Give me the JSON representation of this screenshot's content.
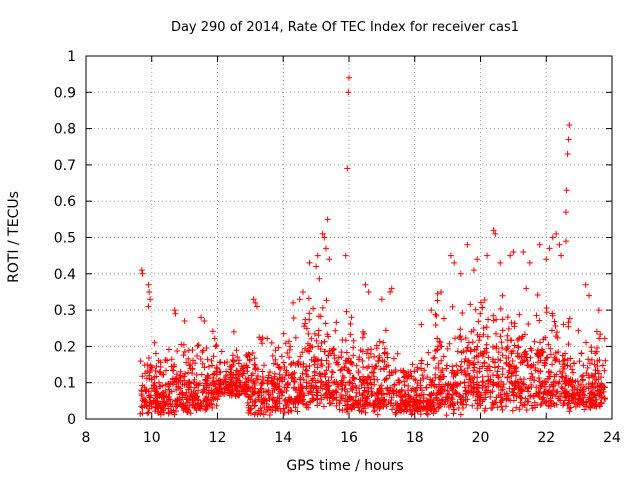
{
  "chart_data": {
    "type": "scatter",
    "title": "Day 290 of 2014, Rate Of TEC Index for receiver cas1",
    "xlabel": "GPS time / hours",
    "ylabel": "ROTI / TECUs",
    "xlim": [
      8,
      24
    ],
    "ylim": [
      0,
      1
    ],
    "xticks": [
      8,
      10,
      12,
      14,
      16,
      18,
      20,
      22,
      24
    ],
    "yticks": [
      0,
      0.1,
      0.2,
      0.3,
      0.4,
      0.5,
      0.6,
      0.7,
      0.8,
      0.9,
      1
    ],
    "ytick_labels": [
      "0",
      "0.1",
      "0.2",
      "0.3",
      "0.4",
      "0.5",
      "0.6",
      "0.7",
      "0.8",
      "0.9",
      "1"
    ],
    "grid": true,
    "marker": "+",
    "color": "#ff0000",
    "series": [
      {
        "name": "cas1",
        "points": [
          [
            9.7,
            0.41
          ],
          [
            9.72,
            0.4
          ],
          [
            9.9,
            0.37
          ],
          [
            9.92,
            0.35
          ],
          [
            9.95,
            0.33
          ],
          [
            9.9,
            0.31
          ],
          [
            10.7,
            0.3
          ],
          [
            10.72,
            0.29
          ],
          [
            11.0,
            0.27
          ],
          [
            11.5,
            0.28
          ],
          [
            11.6,
            0.27
          ],
          [
            12.5,
            0.24
          ],
          [
            13.1,
            0.33
          ],
          [
            13.15,
            0.32
          ],
          [
            13.2,
            0.31
          ],
          [
            14.3,
            0.32
          ],
          [
            14.5,
            0.33
          ],
          [
            14.6,
            0.35
          ],
          [
            14.8,
            0.43
          ],
          [
            15.0,
            0.42
          ],
          [
            15.05,
            0.45
          ],
          [
            15.2,
            0.51
          ],
          [
            15.25,
            0.5
          ],
          [
            15.35,
            0.55
          ],
          [
            15.3,
            0.47
          ],
          [
            15.4,
            0.44
          ],
          [
            15.9,
            0.45
          ],
          [
            15.95,
            0.69
          ],
          [
            15.98,
            0.9
          ],
          [
            16.0,
            0.94
          ],
          [
            16.5,
            0.37
          ],
          [
            16.6,
            0.35
          ],
          [
            17.0,
            0.33
          ],
          [
            17.25,
            0.35
          ],
          [
            17.3,
            0.36
          ],
          [
            18.2,
            0.26
          ],
          [
            18.5,
            0.3
          ],
          [
            18.8,
            0.35
          ],
          [
            19.1,
            0.45
          ],
          [
            19.2,
            0.43
          ],
          [
            19.4,
            0.4
          ],
          [
            19.6,
            0.48
          ],
          [
            19.8,
            0.41
          ],
          [
            19.9,
            0.44
          ],
          [
            20.2,
            0.45
          ],
          [
            20.4,
            0.52
          ],
          [
            20.45,
            0.51
          ],
          [
            20.6,
            0.43
          ],
          [
            20.9,
            0.45
          ],
          [
            21.0,
            0.46
          ],
          [
            21.3,
            0.46
          ],
          [
            21.5,
            0.43
          ],
          [
            21.8,
            0.48
          ],
          [
            22.0,
            0.44
          ],
          [
            22.1,
            0.47
          ],
          [
            22.2,
            0.5
          ],
          [
            22.3,
            0.51
          ],
          [
            22.4,
            0.48
          ],
          [
            22.45,
            0.45
          ],
          [
            22.6,
            0.49
          ],
          [
            22.6,
            0.57
          ],
          [
            22.62,
            0.63
          ],
          [
            22.65,
            0.73
          ],
          [
            22.68,
            0.77
          ],
          [
            22.7,
            0.81
          ],
          [
            23.2,
            0.37
          ],
          [
            23.3,
            0.34
          ],
          [
            23.6,
            0.3
          ]
        ],
        "bands": [
          {
            "x_range": [
              9.65,
              10.2
            ],
            "y_range": [
              0.01,
              0.26
            ]
          },
          {
            "x_range": [
              10.2,
              11.2
            ],
            "y_range": [
              0.01,
              0.25
            ]
          },
          {
            "x_range": [
              11.2,
              12.0
            ],
            "y_range": [
              0.02,
              0.26
            ]
          },
          {
            "x_range": [
              12.0,
              12.9
            ],
            "y_range": [
              0.06,
              0.2
            ]
          },
          {
            "x_range": [
              12.9,
              13.6
            ],
            "y_range": [
              0.01,
              0.28
            ]
          },
          {
            "x_range": [
              13.6,
              14.6
            ],
            "y_range": [
              0.01,
              0.3
            ]
          },
          {
            "x_range": [
              14.6,
              15.6
            ],
            "y_range": [
              0.02,
              0.4
            ]
          },
          {
            "x_range": [
              15.6,
              16.2
            ],
            "y_range": [
              0.01,
              0.33
            ]
          },
          {
            "x_range": [
              16.2,
              17.2
            ],
            "y_range": [
              0.01,
              0.3
            ]
          },
          {
            "x_range": [
              17.2,
              18.6
            ],
            "y_range": [
              0.01,
              0.2
            ]
          },
          {
            "x_range": [
              18.6,
              19.6
            ],
            "y_range": [
              0.01,
              0.36
            ]
          },
          {
            "x_range": [
              19.6,
              20.6
            ],
            "y_range": [
              0.02,
              0.4
            ]
          },
          {
            "x_range": [
              20.6,
              21.6
            ],
            "y_range": [
              0.02,
              0.38
            ]
          },
          {
            "x_range": [
              21.6,
              22.4
            ],
            "y_range": [
              0.02,
              0.37
            ]
          },
          {
            "x_range": [
              22.4,
              23.0
            ],
            "y_range": [
              0.02,
              0.3
            ]
          },
          {
            "x_range": [
              23.0,
              23.8
            ],
            "y_range": [
              0.02,
              0.27
            ]
          }
        ]
      }
    ]
  }
}
